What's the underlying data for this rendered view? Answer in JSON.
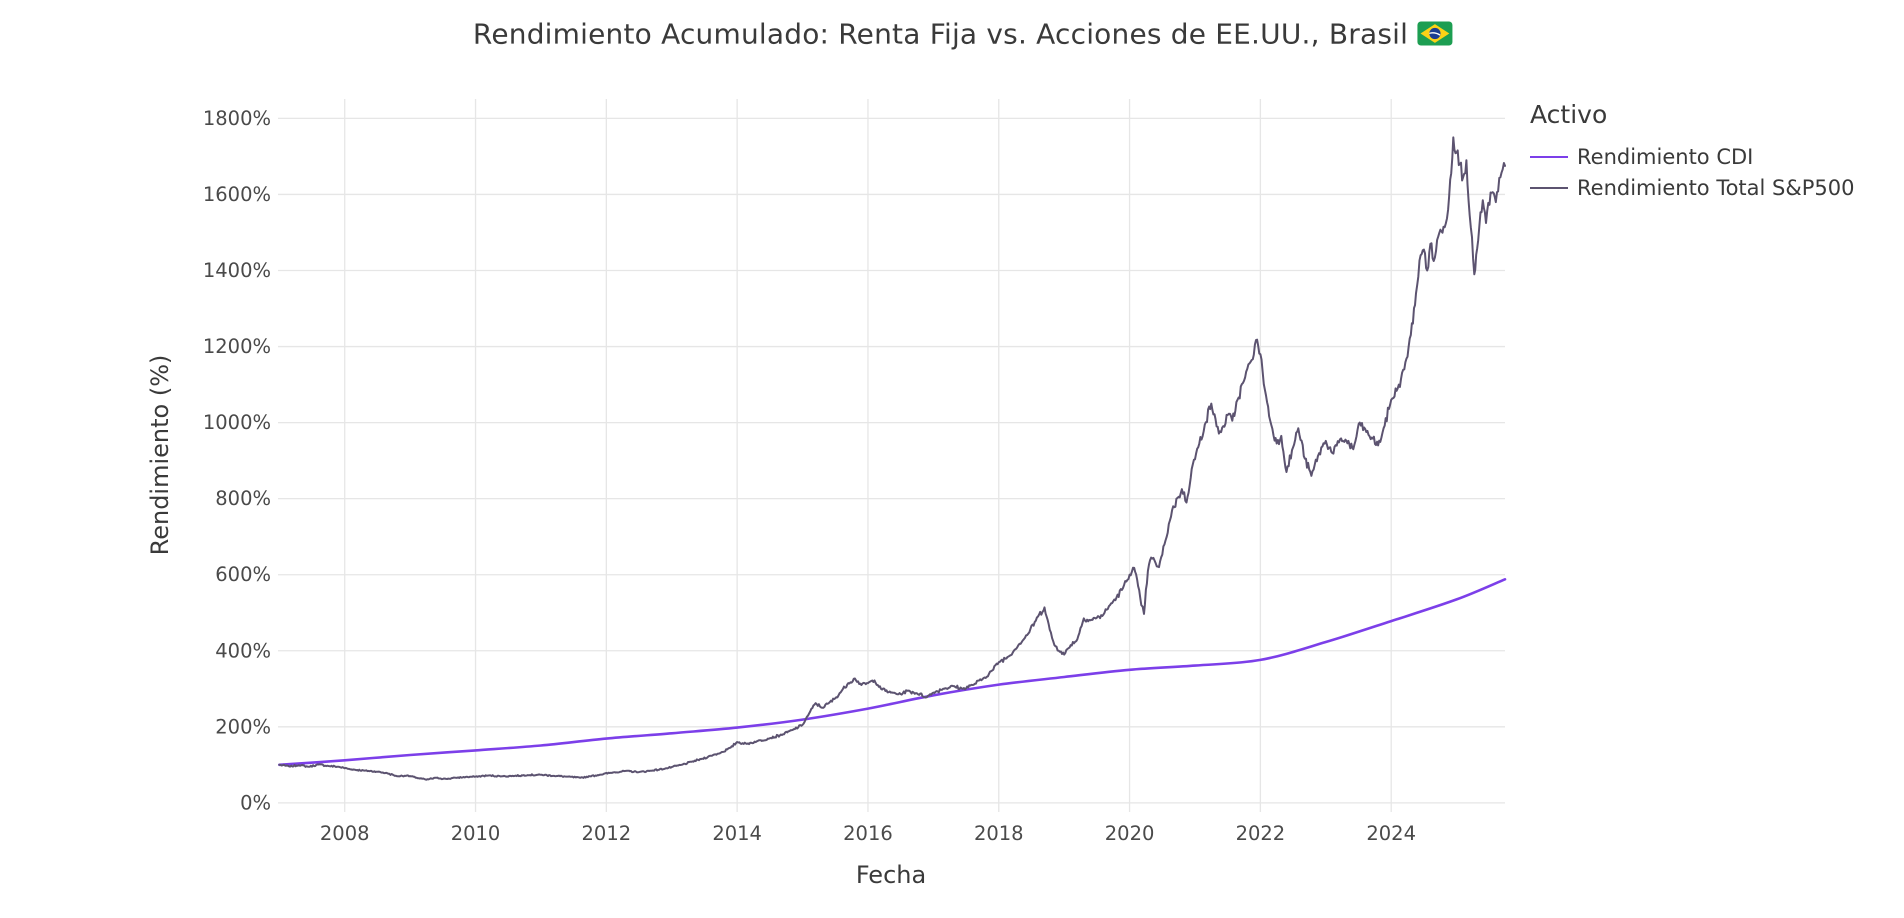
{
  "chart_data": {
    "type": "line",
    "title": "Rendimiento Acumulado: Renta Fija vs. Acciones de EE.UU., Brasil",
    "title_flag": "brazil-flag",
    "xlabel": "Fecha",
    "ylabel": "Rendimiento (%)",
    "legend_title": "Activo",
    "legend_position": "right",
    "grid": true,
    "background": "#ffffff",
    "grid_color": "#e6e6e6",
    "text_color": "#3a3a3a",
    "tick_color": "#4a4a4a",
    "x_ticks": [
      2008,
      2010,
      2012,
      2014,
      2016,
      2018,
      2020,
      2022,
      2024
    ],
    "y_ticks": [
      0,
      200,
      400,
      600,
      800,
      1000,
      1200,
      1400,
      1600,
      1800
    ],
    "y_tick_suffix": "%",
    "xlim": [
      2006.98,
      2025.74
    ],
    "ylim": [
      -24,
      1851
    ],
    "series": [
      {
        "name": "Rendimiento CDI",
        "color": "#7C3FE9",
        "style": "smooth",
        "width": 2.6,
        "points": [
          [
            2007.0,
            100
          ],
          [
            2008.0,
            112
          ],
          [
            2009.0,
            126
          ],
          [
            2010.0,
            138
          ],
          [
            2011.0,
            151
          ],
          [
            2012.0,
            169
          ],
          [
            2013.0,
            183
          ],
          [
            2014.0,
            198
          ],
          [
            2015.0,
            219
          ],
          [
            2016.0,
            248
          ],
          [
            2017.0,
            283
          ],
          [
            2018.0,
            311
          ],
          [
            2019.0,
            331
          ],
          [
            2020.0,
            350
          ],
          [
            2021.0,
            361
          ],
          [
            2022.0,
            376
          ],
          [
            2023.0,
            423
          ],
          [
            2024.0,
            478
          ],
          [
            2025.0,
            535
          ],
          [
            2025.74,
            588
          ]
        ]
      },
      {
        "name": "Rendimiento Total S&P500",
        "color": "#5C5370",
        "style": "jagged",
        "width": 2.0,
        "points": [
          [
            2007.0,
            100
          ],
          [
            2007.15,
            96
          ],
          [
            2007.3,
            99
          ],
          [
            2007.45,
            95
          ],
          [
            2007.6,
            101
          ],
          [
            2007.75,
            97
          ],
          [
            2007.9,
            95
          ],
          [
            2008.1,
            88
          ],
          [
            2008.3,
            85
          ],
          [
            2008.5,
            82
          ],
          [
            2008.65,
            78
          ],
          [
            2008.8,
            70
          ],
          [
            2008.95,
            72
          ],
          [
            2009.1,
            66
          ],
          [
            2009.25,
            61
          ],
          [
            2009.4,
            66
          ],
          [
            2009.55,
            63
          ],
          [
            2009.7,
            66
          ],
          [
            2009.85,
            68
          ],
          [
            2010.0,
            69
          ],
          [
            2010.2,
            72
          ],
          [
            2010.4,
            70
          ],
          [
            2010.6,
            71
          ],
          [
            2010.8,
            73
          ],
          [
            2011.0,
            74
          ],
          [
            2011.2,
            71
          ],
          [
            2011.4,
            69
          ],
          [
            2011.6,
            66
          ],
          [
            2011.75,
            70
          ],
          [
            2011.9,
            74
          ],
          [
            2012.1,
            80
          ],
          [
            2012.3,
            84
          ],
          [
            2012.5,
            81
          ],
          [
            2012.7,
            85
          ],
          [
            2012.9,
            90
          ],
          [
            2013.0,
            94
          ],
          [
            2013.15,
            100
          ],
          [
            2013.3,
            108
          ],
          [
            2013.45,
            115
          ],
          [
            2013.6,
            124
          ],
          [
            2013.75,
            132
          ],
          [
            2013.9,
            145
          ],
          [
            2014.0,
            160
          ],
          [
            2014.15,
            155
          ],
          [
            2014.3,
            162
          ],
          [
            2014.5,
            170
          ],
          [
            2014.7,
            180
          ],
          [
            2014.85,
            192
          ],
          [
            2015.0,
            205
          ],
          [
            2015.1,
            235
          ],
          [
            2015.2,
            262
          ],
          [
            2015.3,
            250
          ],
          [
            2015.4,
            262
          ],
          [
            2015.5,
            275
          ],
          [
            2015.6,
            295
          ],
          [
            2015.7,
            315
          ],
          [
            2015.8,
            327
          ],
          [
            2015.9,
            310
          ],
          [
            2016.0,
            315
          ],
          [
            2016.1,
            322
          ],
          [
            2016.2,
            300
          ],
          [
            2016.35,
            290
          ],
          [
            2016.5,
            286
          ],
          [
            2016.6,
            295
          ],
          [
            2016.75,
            288
          ],
          [
            2016.9,
            278
          ],
          [
            2017.0,
            290
          ],
          [
            2017.15,
            300
          ],
          [
            2017.3,
            307
          ],
          [
            2017.45,
            300
          ],
          [
            2017.6,
            310
          ],
          [
            2017.75,
            325
          ],
          [
            2017.9,
            348
          ],
          [
            2018.0,
            370
          ],
          [
            2018.15,
            385
          ],
          [
            2018.3,
            415
          ],
          [
            2018.45,
            445
          ],
          [
            2018.6,
            490
          ],
          [
            2018.7,
            514
          ],
          [
            2018.78,
            455
          ],
          [
            2018.85,
            415
          ],
          [
            2018.95,
            398
          ],
          [
            2019.0,
            390
          ],
          [
            2019.1,
            415
          ],
          [
            2019.2,
            430
          ],
          [
            2019.3,
            485
          ],
          [
            2019.4,
            480
          ],
          [
            2019.5,
            487
          ],
          [
            2019.6,
            495
          ],
          [
            2019.7,
            520
          ],
          [
            2019.8,
            540
          ],
          [
            2019.9,
            565
          ],
          [
            2020.0,
            600
          ],
          [
            2020.07,
            618
          ],
          [
            2020.13,
            570
          ],
          [
            2020.18,
            520
          ],
          [
            2020.22,
            497
          ],
          [
            2020.28,
            610
          ],
          [
            2020.33,
            645
          ],
          [
            2020.4,
            630
          ],
          [
            2020.45,
            620
          ],
          [
            2020.55,
            690
          ],
          [
            2020.65,
            770
          ],
          [
            2020.75,
            805
          ],
          [
            2020.8,
            825
          ],
          [
            2020.87,
            790
          ],
          [
            2020.95,
            878
          ],
          [
            2021.05,
            935
          ],
          [
            2021.15,
            995
          ],
          [
            2021.25,
            1050
          ],
          [
            2021.33,
            990
          ],
          [
            2021.4,
            975
          ],
          [
            2021.5,
            1020
          ],
          [
            2021.57,
            1005
          ],
          [
            2021.65,
            1060
          ],
          [
            2021.75,
            1110
          ],
          [
            2021.85,
            1160
          ],
          [
            2021.95,
            1218
          ],
          [
            2022.0,
            1180
          ],
          [
            2022.07,
            1085
          ],
          [
            2022.15,
            1005
          ],
          [
            2022.25,
            945
          ],
          [
            2022.32,
            965
          ],
          [
            2022.4,
            870
          ],
          [
            2022.5,
            935
          ],
          [
            2022.58,
            985
          ],
          [
            2022.68,
            905
          ],
          [
            2022.78,
            860
          ],
          [
            2022.88,
            912
          ],
          [
            2023.0,
            952
          ],
          [
            2023.1,
            920
          ],
          [
            2023.2,
            948
          ],
          [
            2023.3,
            955
          ],
          [
            2023.42,
            930
          ],
          [
            2023.52,
            1000
          ],
          [
            2023.62,
            975
          ],
          [
            2023.72,
            958
          ],
          [
            2023.8,
            940
          ],
          [
            2023.9,
            992
          ],
          [
            2024.0,
            1060
          ],
          [
            2024.1,
            1090
          ],
          [
            2024.2,
            1140
          ],
          [
            2024.3,
            1230
          ],
          [
            2024.38,
            1340
          ],
          [
            2024.45,
            1440
          ],
          [
            2024.5,
            1455
          ],
          [
            2024.55,
            1400
          ],
          [
            2024.6,
            1470
          ],
          [
            2024.65,
            1425
          ],
          [
            2024.72,
            1490
          ],
          [
            2024.8,
            1515
          ],
          [
            2024.87,
            1560
          ],
          [
            2024.95,
            1750
          ],
          [
            2025.0,
            1710
          ],
          [
            2025.05,
            1680
          ],
          [
            2025.1,
            1645
          ],
          [
            2025.15,
            1690
          ],
          [
            2025.2,
            1545
          ],
          [
            2025.27,
            1390
          ],
          [
            2025.33,
            1480
          ],
          [
            2025.4,
            1585
          ],
          [
            2025.45,
            1525
          ],
          [
            2025.52,
            1605
          ],
          [
            2025.6,
            1580
          ],
          [
            2025.67,
            1645
          ],
          [
            2025.74,
            1675
          ]
        ]
      }
    ]
  }
}
